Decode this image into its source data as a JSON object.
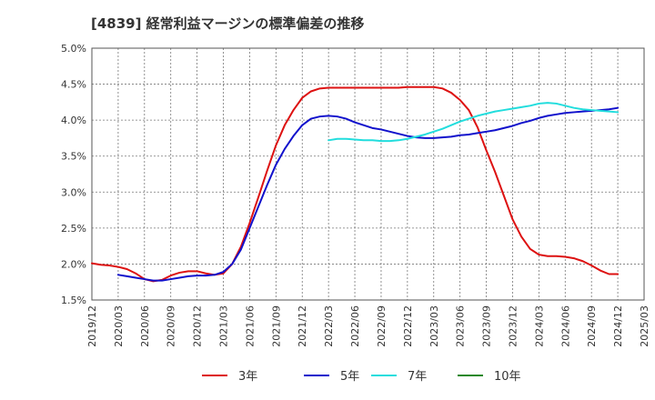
{
  "chart_data": {
    "type": "line",
    "title": "[4839]  経常利益マージンの標準偏差の推移",
    "xlabel": "",
    "ylabel": "",
    "ylim": [
      1.5,
      5.0
    ],
    "xlim": [
      "2019-12",
      "2025-03"
    ],
    "y_ticks": [
      {
        "value": 1.5,
        "label": "1.5%"
      },
      {
        "value": 2.0,
        "label": "2.0%"
      },
      {
        "value": 2.5,
        "label": "2.5%"
      },
      {
        "value": 3.0,
        "label": "3.0%"
      },
      {
        "value": 3.5,
        "label": "3.5%"
      },
      {
        "value": 4.0,
        "label": "4.0%"
      },
      {
        "value": 4.5,
        "label": "4.5%"
      },
      {
        "value": 5.0,
        "label": "5.0%"
      }
    ],
    "x_ticks": [
      "2019/12",
      "2020/03",
      "2020/06",
      "2020/09",
      "2020/12",
      "2021/03",
      "2021/06",
      "2021/09",
      "2021/12",
      "2022/03",
      "2022/06",
      "2022/09",
      "2022/12",
      "2023/03",
      "2023/06",
      "2023/09",
      "2023/12",
      "2024/03",
      "2024/06",
      "2024/09",
      "2024/12",
      "2025/03"
    ],
    "grid": true,
    "legend_position": "bottom",
    "series": [
      {
        "name": "3年",
        "color": "#dd1111",
        "x": [
          "2019-12",
          "2020-01",
          "2020-02",
          "2020-03",
          "2020-04",
          "2020-05",
          "2020-06",
          "2020-07",
          "2020-08",
          "2020-09",
          "2020-10",
          "2020-11",
          "2020-12",
          "2021-01",
          "2021-02",
          "2021-03",
          "2021-04",
          "2021-05",
          "2021-06",
          "2021-07",
          "2021-08",
          "2021-09",
          "2021-10",
          "2021-11",
          "2021-12",
          "2022-01",
          "2022-02",
          "2022-03",
          "2022-04",
          "2022-05",
          "2022-06",
          "2022-07",
          "2022-08",
          "2022-09",
          "2022-10",
          "2022-11",
          "2022-12",
          "2023-01",
          "2023-02",
          "2023-03",
          "2023-04",
          "2023-05",
          "2023-06",
          "2023-07",
          "2023-08",
          "2023-09",
          "2023-10",
          "2023-11",
          "2023-12",
          "2024-01",
          "2024-02",
          "2024-03",
          "2024-04",
          "2024-05",
          "2024-06",
          "2024-07",
          "2024-08",
          "2024-09",
          "2024-10",
          "2024-11",
          "2024-12"
        ],
        "values": [
          2.01,
          1.99,
          1.98,
          1.96,
          1.93,
          1.87,
          1.79,
          1.76,
          1.78,
          1.84,
          1.88,
          1.9,
          1.9,
          1.87,
          1.85,
          1.87,
          2.0,
          2.24,
          2.57,
          2.93,
          3.3,
          3.65,
          3.93,
          4.14,
          4.31,
          4.4,
          4.44,
          4.45,
          4.45,
          4.45,
          4.45,
          4.45,
          4.45,
          4.45,
          4.45,
          4.45,
          4.46,
          4.46,
          4.46,
          4.46,
          4.44,
          4.38,
          4.28,
          4.14,
          3.9,
          3.58,
          3.28,
          2.95,
          2.62,
          2.38,
          2.21,
          2.13,
          2.11,
          2.11,
          2.1,
          2.08,
          2.04,
          1.98,
          1.91,
          1.86,
          1.86
        ]
      },
      {
        "name": "5年",
        "color": "#1111cc",
        "x": [
          "2020-03",
          "2020-04",
          "2020-05",
          "2020-06",
          "2020-07",
          "2020-08",
          "2020-09",
          "2020-10",
          "2020-11",
          "2020-12",
          "2021-01",
          "2021-02",
          "2021-03",
          "2021-04",
          "2021-05",
          "2021-06",
          "2021-07",
          "2021-08",
          "2021-09",
          "2021-10",
          "2021-11",
          "2021-12",
          "2022-01",
          "2022-02",
          "2022-03",
          "2022-04",
          "2022-05",
          "2022-06",
          "2022-07",
          "2022-08",
          "2022-09",
          "2022-10",
          "2022-11",
          "2022-12",
          "2023-01",
          "2023-02",
          "2023-03",
          "2023-04",
          "2023-05",
          "2023-06",
          "2023-07",
          "2023-08",
          "2023-09",
          "2023-10",
          "2023-11",
          "2023-12",
          "2024-01",
          "2024-02",
          "2024-03",
          "2024-04",
          "2024-05",
          "2024-06",
          "2024-07",
          "2024-08",
          "2024-09",
          "2024-10",
          "2024-11",
          "2024-12"
        ],
        "values": [
          1.85,
          1.83,
          1.81,
          1.79,
          1.77,
          1.77,
          1.79,
          1.81,
          1.83,
          1.84,
          1.84,
          1.85,
          1.89,
          2.0,
          2.2,
          2.5,
          2.8,
          3.1,
          3.38,
          3.6,
          3.78,
          3.93,
          4.02,
          4.05,
          4.06,
          4.05,
          4.02,
          3.97,
          3.93,
          3.89,
          3.87,
          3.84,
          3.81,
          3.78,
          3.76,
          3.75,
          3.75,
          3.76,
          3.77,
          3.79,
          3.8,
          3.82,
          3.84,
          3.86,
          3.89,
          3.92,
          3.96,
          3.99,
          4.03,
          4.06,
          4.08,
          4.1,
          4.11,
          4.12,
          4.13,
          4.14,
          4.15,
          4.17
        ]
      },
      {
        "name": "7年",
        "color": "#22dddd",
        "x": [
          "2022-03",
          "2022-04",
          "2022-05",
          "2022-06",
          "2022-07",
          "2022-08",
          "2022-09",
          "2022-10",
          "2022-11",
          "2022-12",
          "2023-01",
          "2023-02",
          "2023-03",
          "2023-04",
          "2023-05",
          "2023-06",
          "2023-07",
          "2023-08",
          "2023-09",
          "2023-10",
          "2023-11",
          "2023-12",
          "2024-01",
          "2024-02",
          "2024-03",
          "2024-04",
          "2024-05",
          "2024-06",
          "2024-07",
          "2024-08",
          "2024-09",
          "2024-10",
          "2024-11",
          "2024-12"
        ],
        "values": [
          3.72,
          3.74,
          3.74,
          3.73,
          3.72,
          3.72,
          3.71,
          3.71,
          3.72,
          3.74,
          3.77,
          3.8,
          3.84,
          3.88,
          3.93,
          3.98,
          4.02,
          4.06,
          4.09,
          4.12,
          4.14,
          4.16,
          4.18,
          4.2,
          4.23,
          4.24,
          4.23,
          4.2,
          4.17,
          4.15,
          4.14,
          4.13,
          4.12,
          4.11
        ]
      },
      {
        "name": "10年",
        "color": "#228822",
        "x": [],
        "values": []
      }
    ]
  }
}
